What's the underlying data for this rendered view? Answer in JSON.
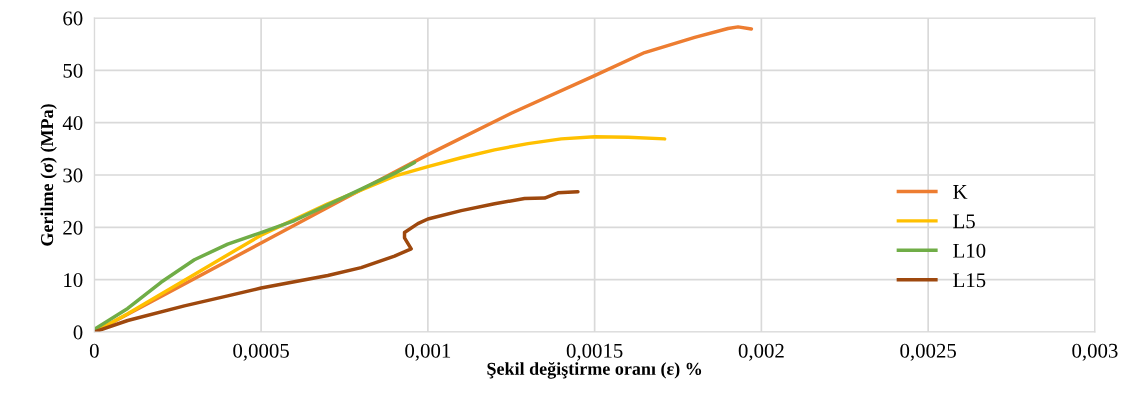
{
  "chart_data": {
    "type": "line",
    "xlabel": "Şekil değiştirme oranı (ε) %",
    "ylabel": "Gerilme (σ) (MPa)",
    "xlim": [
      0,
      0.003
    ],
    "xticks": [
      0,
      {
        "value": 0.0005,
        "label": "0,0005"
      },
      {
        "value": 0.001,
        "label": "0,001"
      },
      {
        "value": 0.0015,
        "label": "0,0015"
      },
      {
        "value": 0.002,
        "label": "0,002"
      },
      {
        "value": 0.0025,
        "label": "0,0025"
      },
      {
        "value": 0.003,
        "label": "0,003"
      }
    ],
    "ylim": [
      0,
      60
    ],
    "yticks": [
      0,
      10,
      20,
      30,
      40,
      50,
      60
    ],
    "grid": true,
    "legend": "right",
    "marker": "none",
    "line_style": "solid",
    "series": [
      {
        "name": "K",
        "color": "#ed7d31",
        "x": [
          0,
          0.0002,
          0.0005,
          0.00075,
          0.001,
          0.00125,
          0.0015,
          0.00165,
          0.0018,
          0.0019,
          0.00193,
          0.00197
        ],
        "values": [
          0,
          6.8,
          17,
          25.5,
          33.9,
          41.8,
          49,
          53.4,
          56.3,
          58,
          58.3,
          57.9
        ]
      },
      {
        "name": "L5",
        "color": "#ffc000",
        "x": [
          0,
          0.0001,
          0.0003,
          0.0005,
          0.0007,
          0.0009,
          0.001,
          0.0011,
          0.0012,
          0.0013,
          0.0014,
          0.0015,
          0.0016,
          0.00171
        ],
        "values": [
          0,
          3.5,
          11,
          18.5,
          24.5,
          29.8,
          31.6,
          33.3,
          34.8,
          36,
          36.9,
          37.3,
          37.2,
          36.9
        ]
      },
      {
        "name": "L10",
        "color": "#70ad47",
        "x": [
          0,
          0.0001,
          0.0002,
          0.0003,
          0.0004,
          0.0005,
          0.0006,
          0.0007,
          0.0008,
          0.0009,
          0.00096
        ],
        "values": [
          0.5,
          4.5,
          9.5,
          13.8,
          16.8,
          19,
          21.3,
          24.3,
          27.3,
          30.3,
          32.4
        ]
      },
      {
        "name": "L15",
        "color": "#9e480e",
        "x": [
          0,
          0.0001,
          0.00027,
          0.0004,
          0.0005,
          0.0007,
          0.0008,
          0.0009,
          0.00095,
          0.00093,
          0.00093,
          0.00097,
          0.001,
          0.0011,
          0.0012,
          0.00129,
          0.00135,
          0.00139,
          0.00145
        ],
        "values": [
          0,
          2.2,
          5,
          6.9,
          8.4,
          10.8,
          12.3,
          14.5,
          15.9,
          18,
          19,
          20.7,
          21.6,
          23.2,
          24.5,
          25.5,
          25.6,
          26.6,
          26.8
        ]
      }
    ]
  }
}
